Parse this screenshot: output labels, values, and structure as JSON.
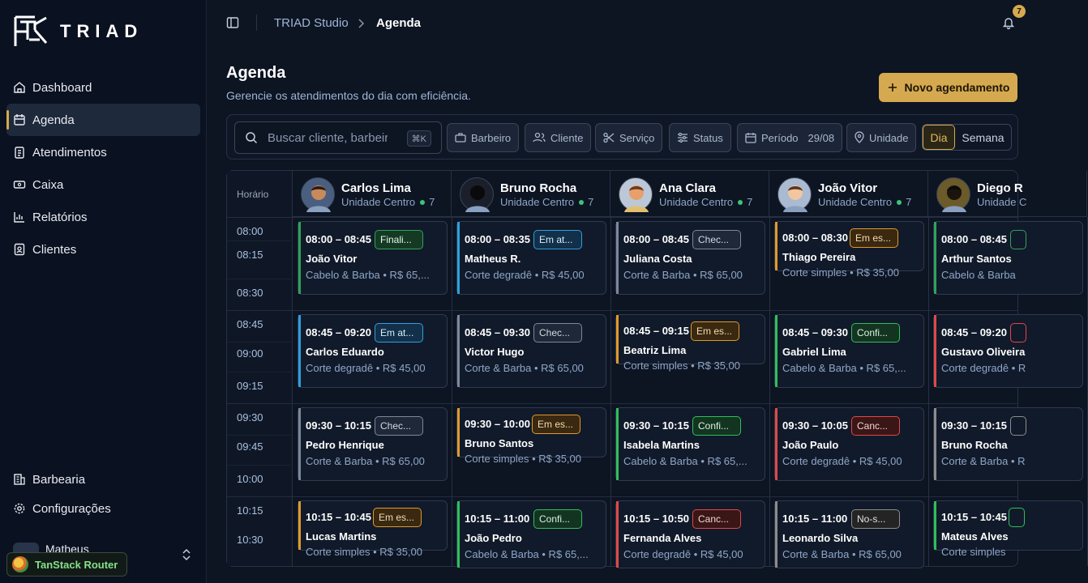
{
  "brand": {
    "name": "TRIAD"
  },
  "sidebar": {
    "nav": [
      {
        "label": "Dashboard",
        "icon": "home-icon"
      },
      {
        "label": "Agenda",
        "icon": "calendar-icon"
      },
      {
        "label": "Atendimentos",
        "icon": "clipboard-icon"
      },
      {
        "label": "Caixa",
        "icon": "cash-icon"
      },
      {
        "label": "Relatórios",
        "icon": "bar-chart-icon"
      },
      {
        "label": "Clientes",
        "icon": "contact-icon"
      }
    ],
    "bottom": [
      {
        "label": "Barbearia",
        "icon": "building-icon"
      },
      {
        "label": "Configurações",
        "icon": "gear-icon"
      }
    ],
    "user_name": "Matheus",
    "devtools_label": "TanStack Router"
  },
  "header": {
    "breadcrumb_root": "TRIAD Studio",
    "breadcrumb_current": "Agenda",
    "notifications": "7"
  },
  "page": {
    "title": "Agenda",
    "subtitle": "Gerencie os atendimentos do dia com eficiência.",
    "new_button": "Novo agendamento"
  },
  "filters": {
    "search_placeholder": "Buscar cliente, barbeiro",
    "search_shortcut": "⌘K",
    "barbeiro": "Barbeiro",
    "cliente": "Cliente",
    "servico": "Serviço",
    "status": "Status",
    "periodo": "Período",
    "periodo_value": "29/08",
    "unidade": "Unidade",
    "view_day": "Dia",
    "view_week": "Semana"
  },
  "schedule": {
    "time_header": "Horário",
    "times": [
      "08:00",
      "08:15",
      "08:30",
      "08:45",
      "09:00",
      "09:15",
      "09:30",
      "09:45",
      "10:00",
      "10:15",
      "10:30"
    ],
    "barbers": [
      {
        "name": "Carlos Lima",
        "unit": "Unidade Centro",
        "count": "7"
      },
      {
        "name": "Bruno Rocha",
        "unit": "Unidade Centro",
        "count": "7"
      },
      {
        "name": "Ana Clara",
        "unit": "Unidade Centro",
        "count": "7"
      },
      {
        "name": "João Vitor",
        "unit": "Unidade Centro",
        "count": "7"
      },
      {
        "name": "Diego R",
        "unit": "Unidade C",
        "count": ""
      }
    ],
    "appointments": [
      [
        {
          "time": "08:00 – 08:45",
          "status": "Finali...",
          "client": "João Vitor",
          "service": "Cabelo & Barba • R$ 65,..."
        },
        {
          "time": "08:45 – 09:20",
          "status": "Em at...",
          "client": "Carlos Eduardo",
          "service": "Corte degradê • R$ 45,00"
        },
        {
          "time": "09:30 – 10:15",
          "status": "Chec...",
          "client": "Pedro Henrique",
          "service": "Corte & Barba • R$ 65,00"
        },
        {
          "time": "10:15 – 10:45",
          "status": "Em es...",
          "client": "Lucas Martins",
          "service": "Corte simples • R$ 35,00"
        }
      ],
      [
        {
          "time": "08:00 – 08:35",
          "status": "Em at...",
          "client": "Matheus R.",
          "service": "Corte degradê • R$ 45,00"
        },
        {
          "time": "08:45 – 09:30",
          "status": "Chec...",
          "client": "Victor Hugo",
          "service": "Corte & Barba • R$ 65,00"
        },
        {
          "time": "09:30 – 10:00",
          "status": "Em es...",
          "client": "Bruno Santos",
          "service": "Corte simples • R$ 35,00"
        },
        {
          "time": "10:15 – 11:00",
          "status": "Confi...",
          "client": "João Pedro",
          "service": "Cabelo & Barba • R$ 65,..."
        }
      ],
      [
        {
          "time": "08:00 – 08:45",
          "status": "Chec...",
          "client": "Juliana Costa",
          "service": "Corte & Barba • R$ 65,00"
        },
        {
          "time": "08:45 – 09:15",
          "status": "Em es...",
          "client": "Beatriz Lima",
          "service": "Corte simples • R$ 35,00"
        },
        {
          "time": "09:30 – 10:15",
          "status": "Confi...",
          "client": "Isabela Martins",
          "service": "Cabelo & Barba • R$ 65,..."
        },
        {
          "time": "10:15 – 10:50",
          "status": "Canc...",
          "client": "Fernanda Alves",
          "service": "Corte degradê • R$ 45,00"
        }
      ],
      [
        {
          "time": "08:00 – 08:30",
          "status": "Em es...",
          "client": "Thiago Pereira",
          "service": "Corte simples • R$ 35,00"
        },
        {
          "time": "08:45 – 09:30",
          "status": "Confi...",
          "client": "Gabriel Lima",
          "service": "Cabelo & Barba • R$ 65,..."
        },
        {
          "time": "09:30 – 10:05",
          "status": "Canc...",
          "client": "João Paulo",
          "service": "Corte degradê • R$ 45,00"
        },
        {
          "time": "10:15 – 11:00",
          "status": "No-s...",
          "client": "Leonardo Silva",
          "service": "Corte & Barba • R$ 65,00"
        }
      ],
      [
        {
          "time": "08:00 – 08:45",
          "status": "",
          "client": "Arthur Santos",
          "service": "Cabelo & Barba"
        },
        {
          "time": "08:45 – 09:20",
          "status": "",
          "client": "Gustavo Oliveira",
          "service": "Corte degradê • R"
        },
        {
          "time": "09:30 – 10:15",
          "status": "",
          "client": "Bruno Rocha",
          "service": "Corte & Barba • R"
        },
        {
          "time": "10:15 – 10:45",
          "status": "",
          "client": "Mateus Alves",
          "service": "Corte simples"
        }
      ]
    ]
  },
  "colors": {
    "accent": "#d5a94f",
    "done": "#2fa35a",
    "in_service": "#2f9ee0",
    "checkin": "#7c879b",
    "waiting": "#e09a2a",
    "confirmed": "#2fbf5a",
    "cancelled": "#e04848",
    "noshow": "#8c8c8c"
  }
}
